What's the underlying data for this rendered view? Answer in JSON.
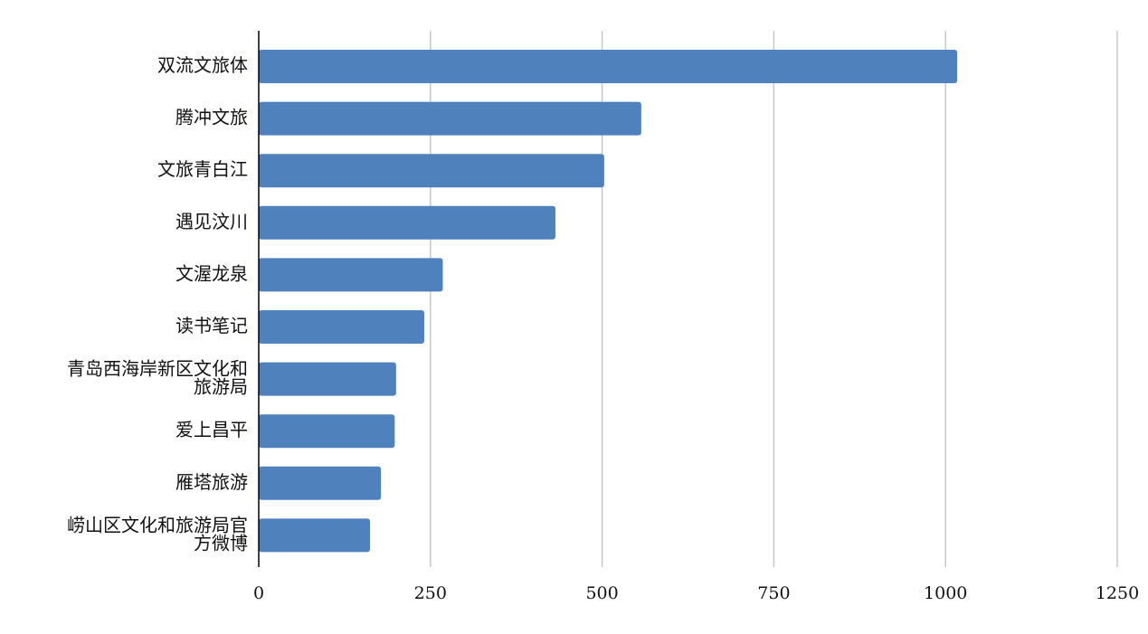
{
  "chart_data": {
    "type": "bar",
    "orientation": "horizontal",
    "categories": [
      "双流文旅体",
      "腾冲文旅",
      "文旅青白江",
      "遇见汶川",
      "文渥龙泉",
      "读书笔记",
      "青岛西海岸新区文化和旅游局",
      "爱上昌平",
      "雁塔旅游",
      "崂山区文化和旅游局官方微博"
    ],
    "category_display_lines": [
      [
        "双流文旅体"
      ],
      [
        "腾冲文旅"
      ],
      [
        "文旅青白江"
      ],
      [
        "遇见汶川"
      ],
      [
        "文渥龙泉"
      ],
      [
        "读书笔记"
      ],
      [
        "青岛西海岸新区文化和",
        "旅游局"
      ],
      [
        "爱上昌平"
      ],
      [
        "雁塔旅游"
      ],
      [
        "崂山区文化和旅游局官",
        "方微博"
      ]
    ],
    "values": [
      1017,
      557,
      503,
      432,
      268,
      241,
      200,
      198,
      178,
      162
    ],
    "title": "",
    "xlabel": "",
    "ylabel": "",
    "xlim": [
      0,
      1250
    ],
    "xticks": [
      0,
      250,
      500,
      750,
      1000,
      1250
    ],
    "xtick_labels": [
      "0",
      "250",
      "500",
      "750",
      "1000",
      "1250"
    ],
    "grid": "vertical",
    "legend": "none",
    "colors": {
      "bar": "#4f81bd",
      "grid": "#c8c8c8",
      "axis": "#000000"
    }
  }
}
